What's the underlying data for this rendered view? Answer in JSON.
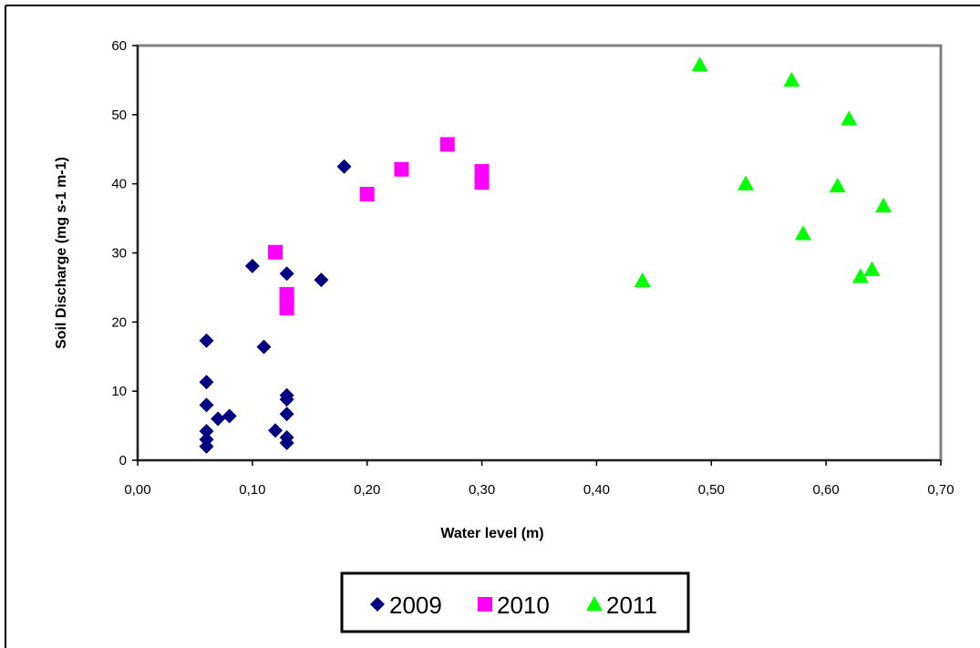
{
  "chart_data": {
    "type": "scatter",
    "title": "",
    "xlabel": "Water level (m)",
    "ylabel": "Soil Discharge (mg s-1 m-1)",
    "xlim": [
      0,
      0.7
    ],
    "ylim": [
      0,
      60
    ],
    "x_ticks": [
      "0,00",
      "0,10",
      "0,20",
      "0,30",
      "0,40",
      "0,50",
      "0,60",
      "0,70"
    ],
    "y_ticks": [
      "0",
      "10",
      "20",
      "30",
      "40",
      "50",
      "60"
    ],
    "grid": false,
    "legend_position": "bottom",
    "series": [
      {
        "name": "2009",
        "color": "#000080",
        "marker": "diamond",
        "points": [
          [
            0.06,
            17.3
          ],
          [
            0.06,
            11.3
          ],
          [
            0.06,
            8.0
          ],
          [
            0.06,
            4.2
          ],
          [
            0.06,
            3.0
          ],
          [
            0.06,
            2.0
          ],
          [
            0.07,
            6.0
          ],
          [
            0.08,
            6.4
          ],
          [
            0.1,
            28.1
          ],
          [
            0.11,
            16.4
          ],
          [
            0.12,
            4.3
          ],
          [
            0.13,
            27.0
          ],
          [
            0.13,
            9.4
          ],
          [
            0.13,
            8.8
          ],
          [
            0.13,
            6.7
          ],
          [
            0.13,
            3.3
          ],
          [
            0.13,
            2.5
          ],
          [
            0.16,
            26.1
          ],
          [
            0.18,
            42.5
          ]
        ]
      },
      {
        "name": "2010",
        "color": "#FF00FF",
        "marker": "square",
        "points": [
          [
            0.12,
            30.1
          ],
          [
            0.13,
            24.0
          ],
          [
            0.13,
            23.0
          ],
          [
            0.13,
            22.0
          ],
          [
            0.2,
            38.5
          ],
          [
            0.23,
            42.1
          ],
          [
            0.27,
            45.7
          ],
          [
            0.3,
            41.8
          ],
          [
            0.3,
            40.2
          ]
        ]
      },
      {
        "name": "2011",
        "color": "#00FF00",
        "marker": "triangle",
        "points": [
          [
            0.44,
            26.0
          ],
          [
            0.49,
            57.2
          ],
          [
            0.53,
            40.0
          ],
          [
            0.57,
            55.0
          ],
          [
            0.58,
            32.8
          ],
          [
            0.61,
            39.7
          ],
          [
            0.62,
            49.4
          ],
          [
            0.63,
            26.6
          ],
          [
            0.64,
            27.6
          ],
          [
            0.65,
            36.8
          ]
        ]
      }
    ]
  }
}
